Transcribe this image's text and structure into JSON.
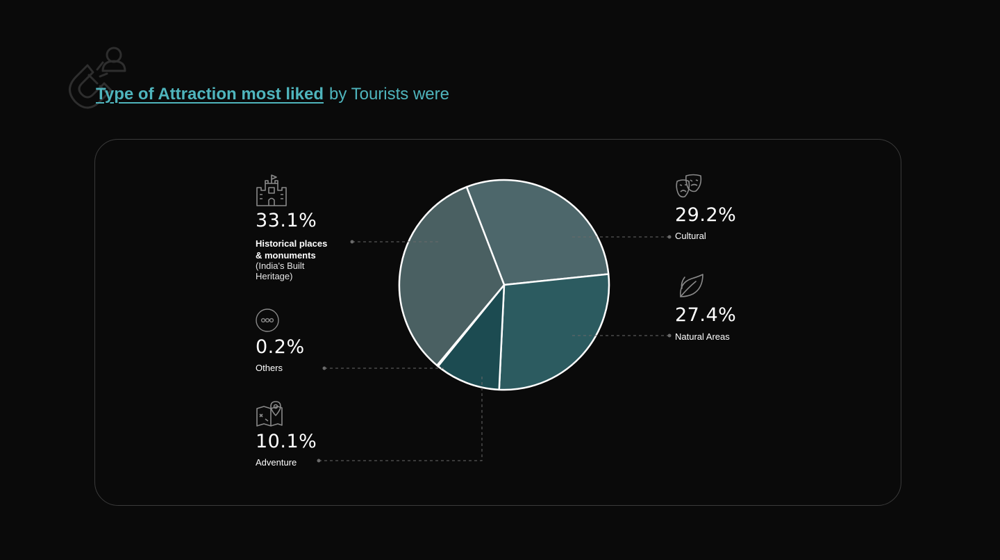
{
  "header": {
    "title_strong": "Type of Attraction most liked",
    "title_rest": "by Tourists were",
    "title_color": "#4fb5bd",
    "icon": "magnet-user-icon"
  },
  "colors": {
    "background": "#0a0a0a",
    "panel_border": "#3b3b3b",
    "slice_stroke": "#ffffff"
  },
  "chart_data": {
    "type": "pie",
    "start_angle_deg": -21,
    "direction": "clockwise",
    "slices": [
      {
        "label": "Cultural",
        "value": 29.2,
        "display": "29.2%",
        "color": "#4d676b",
        "icon": "theater-masks-icon"
      },
      {
        "label": "Natural Areas",
        "value": 27.4,
        "display": "27.4%",
        "color": "#2c5b60",
        "icon": "leaf-icon"
      },
      {
        "label": "Adventure",
        "value": 10.1,
        "display": "10.1%",
        "color": "#1c4b51",
        "icon": "map-pin-icon"
      },
      {
        "label": "Others",
        "value": 0.2,
        "display": "0.2%",
        "color": "#0e2e33",
        "icon": "ellipsis-circle-icon"
      },
      {
        "label": "Historical places & monuments",
        "sublabel": "(India's Built Heritage)",
        "value": 33.1,
        "display": "33.1%",
        "color": "#4a6062",
        "icon": "castle-icon"
      }
    ]
  },
  "labels": {
    "historical_line1": "Historical places",
    "historical_line2": "& monuments",
    "historical_sub1": "(India's Built",
    "historical_sub2": "Heritage)"
  }
}
